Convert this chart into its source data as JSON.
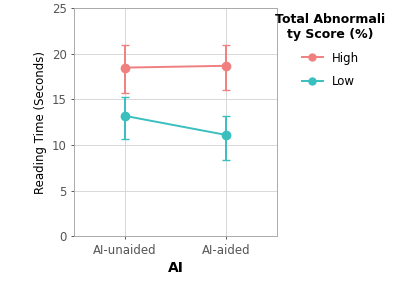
{
  "x_labels": [
    "AI-unaided",
    "AI-aided"
  ],
  "x_positions": [
    1,
    2
  ],
  "high_means": [
    18.5,
    18.7
  ],
  "high_ci_lower": [
    15.7,
    16.0
  ],
  "high_ci_upper": [
    21.0,
    21.0
  ],
  "low_means": [
    13.2,
    11.1
  ],
  "low_ci_lower": [
    10.7,
    8.4
  ],
  "low_ci_upper": [
    15.3,
    13.2
  ],
  "high_color": "#F08080",
  "low_color": "#3ABFBF",
  "ylabel": "Reading Time (Seconds)",
  "xlabel": "AI",
  "ylim": [
    0,
    25
  ],
  "yticks": [
    0,
    5,
    10,
    15,
    20,
    25
  ],
  "legend_title": "Total Abnormali\nty Score (%)",
  "legend_high": "High",
  "legend_low": "Low",
  "background_color": "#ffffff",
  "grid_color": "#d8d8d8",
  "marker": "o",
  "markersize": 6,
  "linewidth": 1.4,
  "capsize": 3
}
